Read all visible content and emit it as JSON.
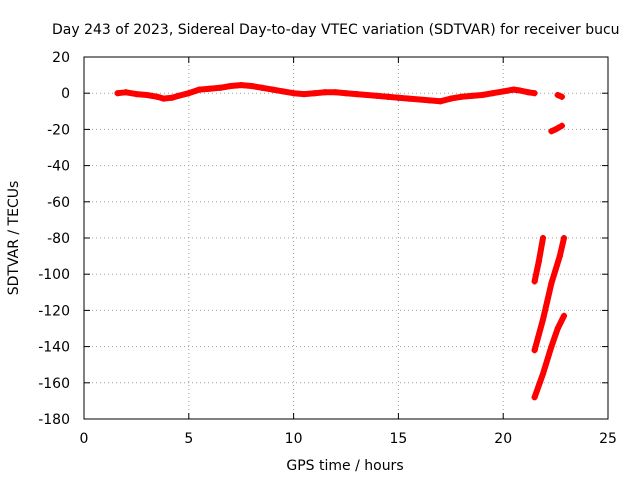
{
  "chart_data": {
    "type": "scatter",
    "title": "Day 243 of 2023, Sidereal Day-to-day VTEC variation (SDTVAR) for receiver bucu",
    "xlabel": "GPS time / hours",
    "ylabel": "SDTVAR / TECUs",
    "xlim": [
      0,
      25
    ],
    "ylim": [
      -180,
      20
    ],
    "xticks": [
      0,
      5,
      10,
      15,
      20,
      25
    ],
    "yticks": [
      20,
      0,
      -20,
      -40,
      -60,
      -80,
      -100,
      -120,
      -140,
      -160,
      -180
    ],
    "grid": true,
    "color": "#ff0000",
    "series": [
      {
        "points": [
          [
            1.6,
            0
          ],
          [
            2.0,
            0.5
          ],
          [
            2.5,
            -0.5
          ],
          [
            3.0,
            -1
          ],
          [
            3.5,
            -2
          ],
          [
            3.8,
            -3
          ],
          [
            4.2,
            -2.5
          ],
          [
            4.5,
            -1.5
          ],
          [
            5.0,
            0
          ],
          [
            5.5,
            2
          ],
          [
            6.0,
            2.5
          ],
          [
            6.5,
            3
          ],
          [
            7.0,
            4
          ],
          [
            7.5,
            4.5
          ],
          [
            8.0,
            4
          ],
          [
            8.5,
            3
          ],
          [
            9.0,
            2
          ],
          [
            9.5,
            1
          ],
          [
            10.0,
            0
          ],
          [
            10.5,
            -0.5
          ],
          [
            11.0,
            0
          ],
          [
            11.5,
            0.5
          ],
          [
            12.0,
            0.5
          ],
          [
            12.5,
            0
          ],
          [
            13.0,
            -0.5
          ],
          [
            13.5,
            -1
          ],
          [
            14.0,
            -1.5
          ],
          [
            14.5,
            -2
          ],
          [
            15.0,
            -2.5
          ],
          [
            15.5,
            -3
          ],
          [
            16.0,
            -3.5
          ],
          [
            16.5,
            -4
          ],
          [
            17.0,
            -4.5
          ],
          [
            17.5,
            -3
          ],
          [
            18.0,
            -2
          ],
          [
            18.5,
            -1.5
          ],
          [
            19.0,
            -1
          ],
          [
            19.5,
            0
          ],
          [
            20.0,
            1
          ],
          [
            20.5,
            2
          ],
          [
            20.8,
            1.5
          ],
          [
            21.2,
            0.5
          ],
          [
            21.5,
            0
          ]
        ]
      },
      {
        "points": [
          [
            22.6,
            -1
          ],
          [
            22.8,
            -2
          ]
        ]
      },
      {
        "points": [
          [
            22.3,
            -21
          ],
          [
            22.5,
            -20
          ],
          [
            22.8,
            -18
          ]
        ]
      },
      {
        "points": [
          [
            21.5,
            -104
          ],
          [
            21.7,
            -93
          ],
          [
            21.9,
            -80
          ]
        ]
      },
      {
        "points": [
          [
            21.5,
            -142
          ],
          [
            21.9,
            -125
          ],
          [
            22.3,
            -105
          ],
          [
            22.7,
            -90
          ],
          [
            22.9,
            -80
          ]
        ]
      },
      {
        "points": [
          [
            21.5,
            -168
          ],
          [
            21.9,
            -155
          ],
          [
            22.3,
            -140
          ],
          [
            22.6,
            -130
          ],
          [
            22.9,
            -123
          ]
        ]
      }
    ]
  }
}
